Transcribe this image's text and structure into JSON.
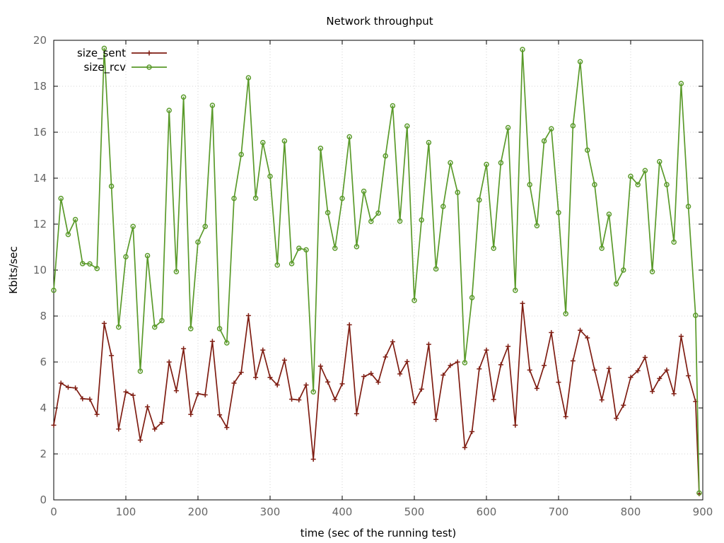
{
  "chart_data": {
    "type": "line",
    "title": "Network throughput",
    "xlabel": "time (sec of the running test)",
    "ylabel": "Kbits/sec",
    "xlim": [
      0,
      900
    ],
    "ylim": [
      0,
      20
    ],
    "xticks": [
      0,
      100,
      200,
      300,
      400,
      500,
      600,
      700,
      800,
      900
    ],
    "yticks": [
      0,
      2,
      4,
      6,
      8,
      10,
      12,
      14,
      16,
      18,
      20
    ],
    "grid": true,
    "legend_position": "top-left",
    "x": [
      0,
      10,
      20,
      30,
      40,
      50,
      60,
      70,
      80,
      90,
      100,
      110,
      120,
      130,
      140,
      150,
      160,
      170,
      180,
      190,
      200,
      210,
      220,
      230,
      240,
      250,
      260,
      270,
      280,
      290,
      300,
      310,
      320,
      330,
      340,
      350,
      360,
      370,
      380,
      390,
      400,
      410,
      420,
      430,
      440,
      450,
      460,
      470,
      480,
      490,
      500,
      510,
      520,
      530,
      540,
      550,
      560,
      570,
      580,
      590,
      600,
      610,
      620,
      630,
      640,
      650,
      660,
      670,
      680,
      690,
      700,
      710,
      720,
      730,
      740,
      750,
      760,
      770,
      780,
      790,
      800,
      810,
      820,
      830,
      840,
      850,
      860,
      870,
      880,
      890,
      895
    ],
    "series": [
      {
        "name": "size_sent",
        "color": "#7f1d12",
        "marker": "plus",
        "values": [
          3.25,
          5.08,
          4.9,
          4.87,
          4.4,
          4.38,
          3.72,
          7.68,
          6.28,
          3.08,
          4.7,
          4.55,
          2.6,
          4.05,
          3.08,
          3.37,
          6.0,
          4.75,
          6.58,
          3.72,
          4.62,
          4.57,
          6.9,
          3.7,
          3.15,
          5.08,
          5.55,
          8.02,
          5.33,
          6.52,
          5.33,
          5.0,
          6.08,
          4.38,
          4.35,
          5.0,
          1.77,
          5.82,
          5.13,
          4.37,
          5.05,
          7.62,
          3.75,
          5.37,
          5.5,
          5.12,
          6.22,
          6.88,
          5.48,
          6.02,
          4.23,
          4.82,
          6.77,
          3.5,
          5.43,
          5.85,
          6.0,
          2.28,
          2.97,
          5.7,
          6.52,
          4.37,
          5.88,
          6.68,
          3.25,
          8.55,
          5.65,
          4.85,
          5.85,
          7.28,
          5.12,
          3.62,
          6.05,
          7.38,
          7.05,
          5.65,
          4.35,
          5.72,
          3.55,
          4.12,
          5.33,
          5.62,
          6.2,
          4.72,
          5.28,
          5.65,
          4.62,
          7.12,
          5.4,
          4.28,
          0.27
        ]
      },
      {
        "name": "size_rcv",
        "color": "#5a9a2a",
        "marker": "circle",
        "values": [
          9.12,
          13.12,
          11.55,
          12.2,
          10.28,
          10.27,
          10.07,
          19.65,
          13.65,
          7.52,
          10.58,
          11.9,
          5.6,
          10.63,
          7.52,
          7.8,
          16.95,
          9.93,
          17.53,
          7.45,
          11.22,
          11.9,
          17.17,
          7.45,
          6.83,
          13.12,
          15.03,
          18.37,
          13.13,
          15.55,
          14.08,
          10.22,
          15.62,
          10.28,
          10.95,
          10.88,
          4.7,
          15.3,
          12.5,
          10.95,
          13.12,
          15.8,
          11.02,
          13.43,
          12.12,
          12.48,
          14.97,
          17.15,
          12.13,
          16.27,
          8.68,
          12.18,
          15.55,
          10.05,
          12.77,
          14.67,
          13.38,
          5.97,
          8.8,
          13.05,
          14.6,
          10.95,
          14.67,
          16.2,
          9.12,
          19.6,
          13.72,
          11.93,
          15.62,
          16.15,
          12.5,
          8.1,
          16.28,
          19.07,
          15.22,
          13.72,
          10.95,
          12.43,
          9.4,
          10.0,
          14.08,
          13.72,
          14.33,
          9.93,
          14.72,
          13.72,
          11.22,
          18.12,
          12.77,
          8.03,
          0.3
        ]
      }
    ]
  }
}
